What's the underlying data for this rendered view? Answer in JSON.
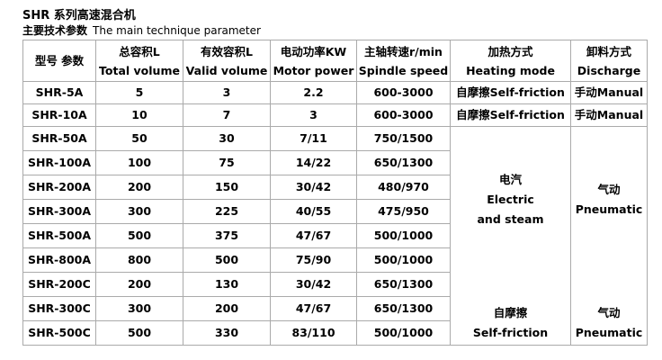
{
  "title": "SHR 系列高速混合机",
  "subtitle_cn": "主要技术参数",
  "subtitle_en": "The main technique parameter",
  "headers": [
    {
      "cn": "型号 参数",
      "en": ""
    },
    {
      "cn": "总容积L",
      "en": "Total volume"
    },
    {
      "cn": "有效容积L",
      "en": "Valid volume"
    },
    {
      "cn": "电动功率KW",
      "en": "Motor power"
    },
    {
      "cn": "主轴转速r/min",
      "en": "Spindle speed"
    },
    {
      "cn": "加热方式",
      "en": "Heating mode"
    },
    {
      "cn": "卸料方式",
      "en": "Discharge"
    }
  ],
  "rows": [
    [
      "SHR-5A",
      "5",
      "3",
      "2.2",
      "600-3000",
      "自摩擦Self-friction",
      "手动Manual"
    ],
    [
      "SHR-10A",
      "10",
      "7",
      "3",
      "600-3000",
      "自摩擦Self-friction",
      "手动Manual"
    ],
    [
      "SHR-50A",
      "50",
      "30",
      "7/11",
      "750/1500"
    ],
    [
      "SHR-100A",
      "100",
      "75",
      "14/22",
      "650/1300"
    ],
    [
      "SHR-200A",
      "200",
      "150",
      "30/42",
      "480/970"
    ],
    [
      "SHR-300A",
      "300",
      "225",
      "40/55",
      "475/950"
    ],
    [
      "SHR-500A",
      "500",
      "375",
      "47/67",
      "500/1000"
    ],
    [
      "SHR-800A",
      "800",
      "500",
      "75/90",
      "500/1000"
    ],
    [
      "SHR-200C",
      "200",
      "130",
      "30/42",
      "650/1300"
    ],
    [
      "SHR-300C",
      "300",
      "200",
      "47/67",
      "650/1300"
    ],
    [
      "SHR-500C",
      "500",
      "330",
      "83/110",
      "500/1000"
    ]
  ],
  "group_a": {
    "heating_cn": "电汽",
    "heating_en1": "Electric",
    "heating_en2": "and steam",
    "discharge_cn": "气动",
    "discharge_en": "Pneumatic"
  },
  "group_c": {
    "heating_cn": "自摩擦",
    "heating_en": "Self-friction",
    "discharge_cn": "气动",
    "discharge_en": "Pneumatic"
  }
}
